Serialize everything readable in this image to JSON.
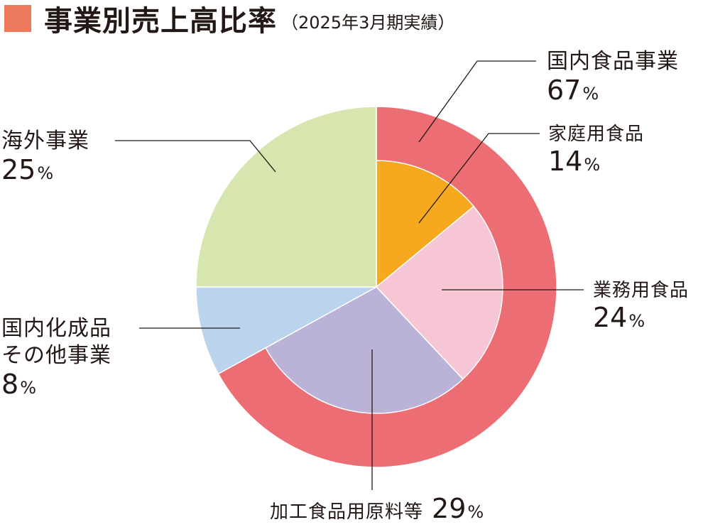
{
  "title": {
    "main": "事業別売上高比率",
    "sub": "（2025年3月期実績）",
    "square_color": "#EE7A5E"
  },
  "chart_data": {
    "type": "pie",
    "title": "事業別売上高比率",
    "subtitle": "（2025年3月期実績）",
    "unit": "%",
    "outer_ring": [
      {
        "label": "国内食品事業",
        "value": 67,
        "color": "#EC6D73"
      }
    ],
    "slices": [
      {
        "label": "家庭用食品",
        "value": 14,
        "color": "#F6A81F"
      },
      {
        "label": "業務用食品",
        "value": 24,
        "color": "#F7C6D4"
      },
      {
        "label": "加工食品用原料等",
        "value": 29,
        "color": "#BBB3D7"
      },
      {
        "label": "国内化成品その他事業",
        "value": 8,
        "color": "#BBD4EE"
      },
      {
        "label": "海外事業",
        "value": 25,
        "color": "#D7E5AF"
      }
    ]
  },
  "labels": {
    "domestic_food": {
      "name": "国内食品事業",
      "pct": "67"
    },
    "household": {
      "name": "家庭用食品",
      "pct": "14"
    },
    "business": {
      "name": "業務用食品",
      "pct": "24"
    },
    "processed": {
      "name": "加工食品用原料等",
      "pct": "29"
    },
    "chemical": {
      "name_line1": "国内化成品",
      "name_line2": "その他事業",
      "pct": "8"
    },
    "overseas": {
      "name": "海外事業",
      "pct": "25"
    },
    "unit": "%"
  }
}
